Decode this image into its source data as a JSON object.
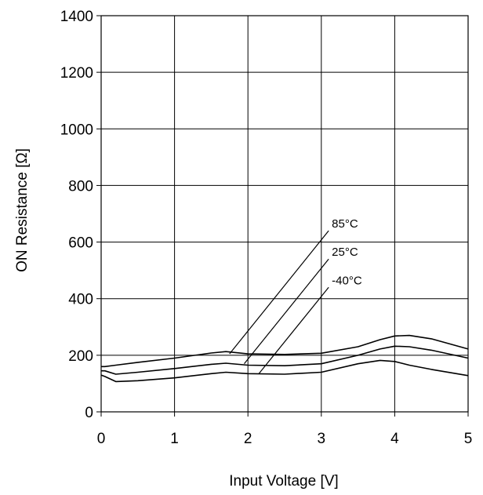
{
  "chart_data": {
    "type": "line",
    "title": "",
    "xlabel": "Input Voltage [V]",
    "ylabel": "ON Resistance [Ω]",
    "xlim": [
      0,
      5
    ],
    "ylim": [
      0,
      1400
    ],
    "x_ticks": [
      "0",
      "1",
      "2",
      "3",
      "4",
      "5"
    ],
    "y_ticks": [
      "0",
      "200",
      "400",
      "600",
      "800",
      "1000",
      "1200",
      "1400"
    ],
    "grid": true,
    "legend": "none",
    "series": [
      {
        "name": "85°C",
        "x": [
          0.0,
          0.05,
          0.2,
          0.5,
          1.0,
          1.5,
          1.7,
          2.0,
          2.5,
          3.0,
          3.5,
          3.8,
          4.0,
          4.2,
          4.5,
          5.0
        ],
        "y": [
          160,
          160,
          165,
          175,
          190,
          208,
          213,
          205,
          203,
          207,
          230,
          255,
          268,
          270,
          258,
          222
        ]
      },
      {
        "name": "25°C",
        "x": [
          0.0,
          0.05,
          0.2,
          0.5,
          1.0,
          1.5,
          1.7,
          2.0,
          2.5,
          3.0,
          3.5,
          3.8,
          4.0,
          4.2,
          4.5,
          5.0
        ],
        "y": [
          145,
          145,
          133,
          140,
          153,
          168,
          172,
          165,
          163,
          170,
          200,
          222,
          232,
          230,
          218,
          190
        ]
      },
      {
        "name": "-40°C",
        "x": [
          0.0,
          0.05,
          0.2,
          0.5,
          1.0,
          1.5,
          1.7,
          2.0,
          2.5,
          3.0,
          3.5,
          3.8,
          4.0,
          4.2,
          4.5,
          5.0
        ],
        "y": [
          130,
          125,
          107,
          110,
          120,
          135,
          140,
          135,
          133,
          140,
          170,
          182,
          178,
          165,
          150,
          128
        ]
      }
    ],
    "annotations": [
      {
        "text": "85°C",
        "line_from": [
          1.75,
          205
        ],
        "line_to": [
          3.1,
          640
        ]
      },
      {
        "text": "25°C",
        "line_from": [
          1.95,
          170
        ],
        "line_to": [
          3.1,
          540
        ]
      },
      {
        "text": "-40°C",
        "line_from": [
          2.15,
          135
        ],
        "line_to": [
          3.1,
          440
        ]
      }
    ]
  }
}
